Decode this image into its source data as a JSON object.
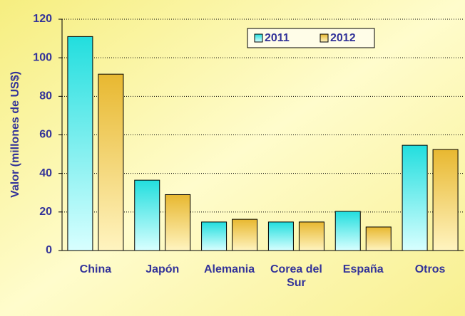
{
  "chart_data": {
    "type": "bar",
    "y_label": "Valor (millones de US$)",
    "categories": [
      "China",
      "Japón",
      "Alemania",
      "Corea del Sur",
      "España",
      "Otros"
    ],
    "series": [
      {
        "name": "2011",
        "color": "#22dede",
        "values": [
          111,
          36.5,
          14.8,
          14.8,
          20.3,
          54.6
        ]
      },
      {
        "name": "2012",
        "color": "#e8b830",
        "values": [
          91.5,
          29,
          16.2,
          14.8,
          12.2,
          52.4
        ]
      }
    ],
    "ylim": [
      0,
      120
    ],
    "yticks": [
      0,
      20,
      40,
      60,
      80,
      100,
      120
    ],
    "grid": true,
    "legend": "top-right"
  }
}
